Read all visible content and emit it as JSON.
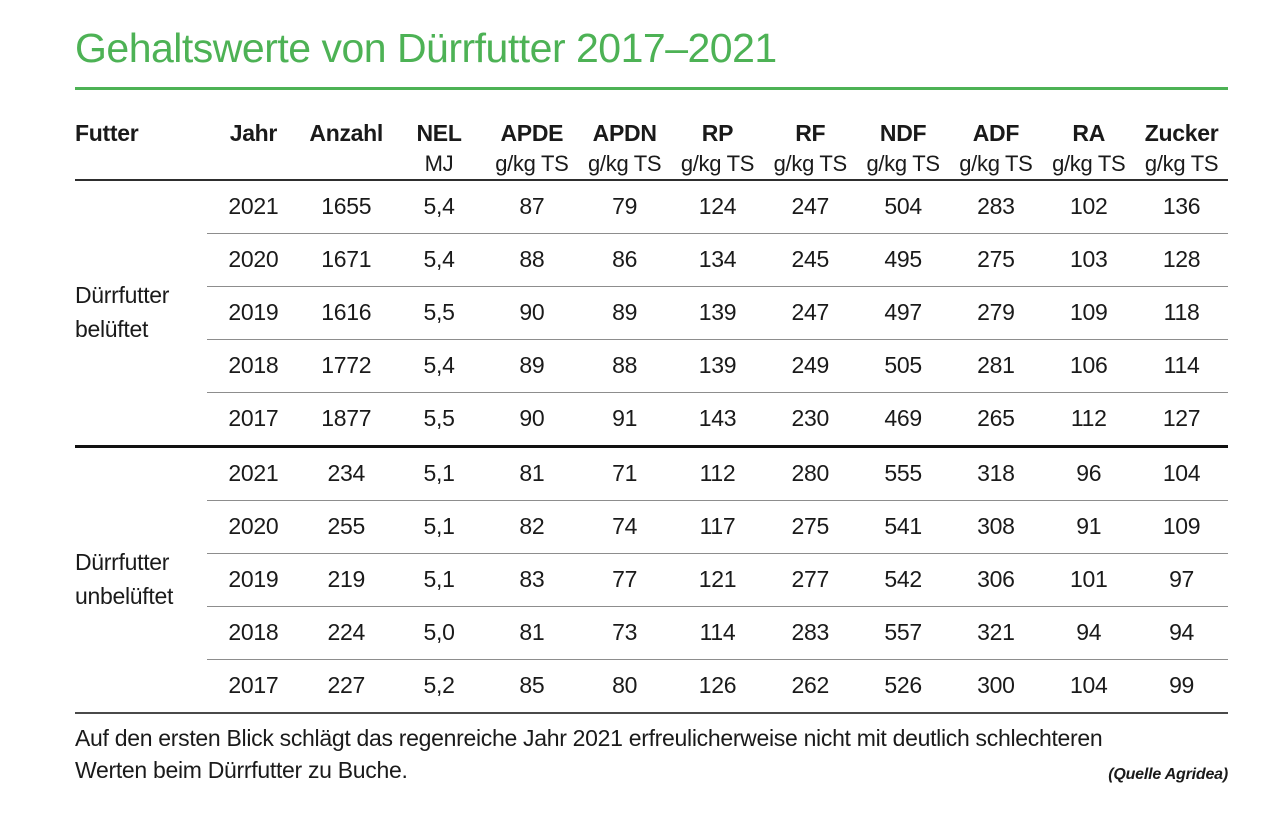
{
  "page": {
    "title": "Gehaltswerte von Dürrfutter 2017–2021",
    "accent_color": "#4db255",
    "caption": "Auf den ersten Blick schlägt das regenreiche Jahr 2021 erfreulicherweise nicht mit deutlich schlechteren Werten beim Dürrfutter zu Buche.",
    "source": "(Quelle Agridea)"
  },
  "chart_data": {
    "type": "table",
    "title": "Gehaltswerte von Dürrfutter 2017–2021",
    "columns": [
      {
        "label": "Futter",
        "unit": ""
      },
      {
        "label": "Jahr",
        "unit": ""
      },
      {
        "label": "Anzahl",
        "unit": ""
      },
      {
        "label": "NEL",
        "unit": "MJ"
      },
      {
        "label": "APDE",
        "unit": "g/kg TS"
      },
      {
        "label": "APDN",
        "unit": "g/kg TS"
      },
      {
        "label": "RP",
        "unit": "g/kg TS"
      },
      {
        "label": "RF",
        "unit": "g/kg TS"
      },
      {
        "label": "NDF",
        "unit": "g/kg TS"
      },
      {
        "label": "ADF",
        "unit": "g/kg TS"
      },
      {
        "label": "RA",
        "unit": "g/kg TS"
      },
      {
        "label": "Zucker",
        "unit": "g/kg TS"
      }
    ],
    "groups": [
      {
        "label": "Dürrfutter belüftet",
        "label_lines": [
          "Dürrfutter",
          "belüftet"
        ],
        "rows": [
          [
            "2021",
            "1655",
            "5,4",
            "87",
            "79",
            "124",
            "247",
            "504",
            "283",
            "102",
            "136"
          ],
          [
            "2020",
            "1671",
            "5,4",
            "88",
            "86",
            "134",
            "245",
            "495",
            "275",
            "103",
            "128"
          ],
          [
            "2019",
            "1616",
            "5,5",
            "90",
            "89",
            "139",
            "247",
            "497",
            "279",
            "109",
            "118"
          ],
          [
            "2018",
            "1772",
            "5,4",
            "89",
            "88",
            "139",
            "249",
            "505",
            "281",
            "106",
            "114"
          ],
          [
            "2017",
            "1877",
            "5,5",
            "90",
            "91",
            "143",
            "230",
            "469",
            "265",
            "112",
            "127"
          ]
        ]
      },
      {
        "label": "Dürrfutter unbelüftet",
        "label_lines": [
          "Dürrfutter",
          "unbelüftet"
        ],
        "rows": [
          [
            "2021",
            "234",
            "5,1",
            "81",
            "71",
            "112",
            "280",
            "555",
            "318",
            "96",
            "104"
          ],
          [
            "2020",
            "255",
            "5,1",
            "82",
            "74",
            "117",
            "275",
            "541",
            "308",
            "91",
            "109"
          ],
          [
            "2019",
            "219",
            "5,1",
            "83",
            "77",
            "121",
            "277",
            "542",
            "306",
            "101",
            "97"
          ],
          [
            "2018",
            "224",
            "5,0",
            "81",
            "73",
            "114",
            "283",
            "557",
            "321",
            "94",
            "94"
          ],
          [
            "2017",
            "227",
            "5,2",
            "85",
            "80",
            "126",
            "262",
            "526",
            "300",
            "104",
            "99"
          ]
        ]
      }
    ]
  }
}
